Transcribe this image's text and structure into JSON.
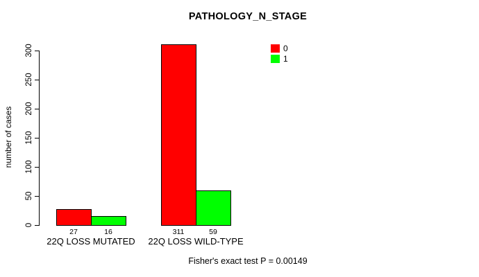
{
  "chart_data": {
    "type": "bar",
    "title": "PATHOLOGY_N_STAGE",
    "ylabel": "number of cases",
    "xlabel": "",
    "categories": [
      "22Q LOSS MUTATED",
      "22Q LOSS WILD-TYPE"
    ],
    "series": [
      {
        "name": "0",
        "color": "#ff0000",
        "values": [
          27,
          311
        ]
      },
      {
        "name": "1",
        "color": "#00ff00",
        "values": [
          16,
          59
        ]
      }
    ],
    "bar_value_labels": [
      [
        27,
        16
      ],
      [
        311,
        59
      ]
    ],
    "ylim": [
      0,
      300
    ],
    "yticks": [
      0,
      50,
      100,
      150,
      200,
      250,
      300
    ],
    "grid": false,
    "legend_position": "top-right",
    "legend_entries": [
      {
        "label": "0",
        "color": "#ff0000"
      },
      {
        "label": "1",
        "color": "#00ff00"
      }
    ],
    "annotation": "Fisher's exact test P = 0.00149",
    "colors": {
      "background": "#ffffff",
      "axis": "#000000",
      "bar_border": "#000000"
    }
  }
}
